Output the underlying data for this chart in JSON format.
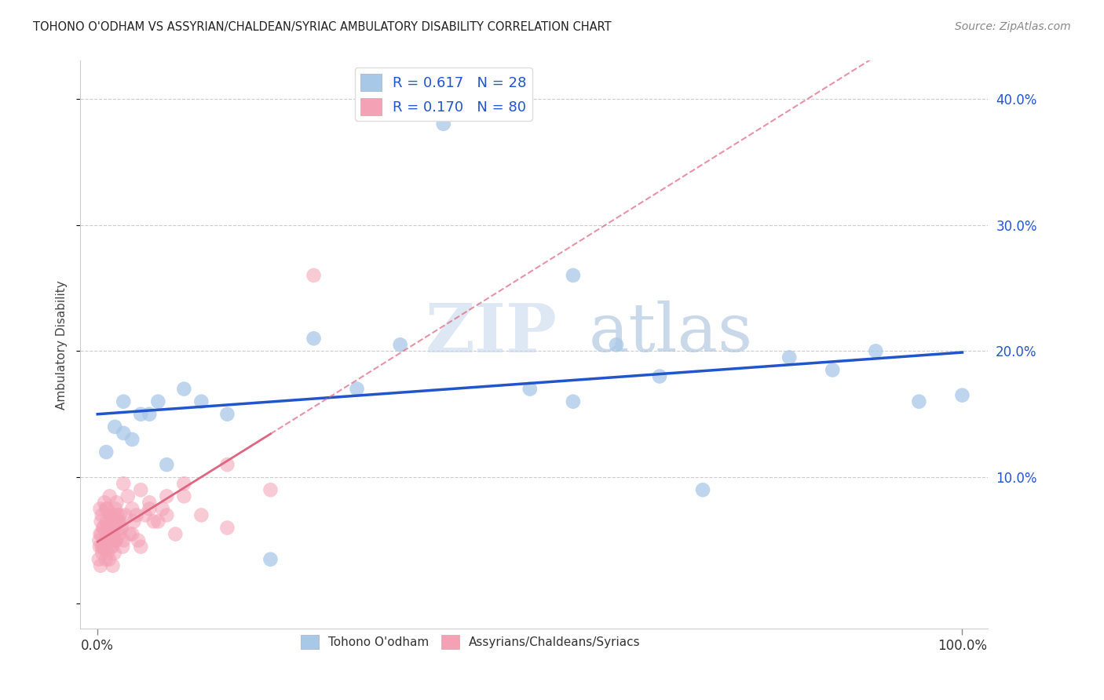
{
  "title": "TOHONO O'ODHAM VS ASSYRIAN/CHALDEAN/SYRIAC AMBULATORY DISABILITY CORRELATION CHART",
  "source": "Source: ZipAtlas.com",
  "ylabel": "Ambulatory Disability",
  "legend_label_blue": "Tohono O'odham",
  "legend_label_pink": "Assyrians/Chaldeans/Syriacs",
  "R_blue": 0.617,
  "N_blue": 28,
  "R_pink": 0.17,
  "N_pink": 80,
  "blue_color": "#A8C8E8",
  "pink_color": "#F4A0B5",
  "blue_line_color": "#2255CC",
  "pink_line_color": "#DD6680",
  "background_color": "#FFFFFF",
  "watermark_zip": "ZIP",
  "watermark_atlas": "atlas",
  "blue_x": [
    1,
    2,
    3,
    3,
    4,
    5,
    6,
    7,
    8,
    10,
    12,
    15,
    20,
    25,
    30,
    35,
    40,
    50,
    55,
    60,
    65,
    70,
    80,
    85,
    90,
    95,
    100,
    55
  ],
  "blue_y": [
    12,
    14,
    13.5,
    16,
    13,
    15,
    15,
    16,
    11,
    17,
    16,
    15,
    3.5,
    21,
    17,
    20.5,
    38,
    17,
    16,
    20.5,
    18,
    9,
    19.5,
    18.5,
    20,
    16,
    16.5,
    26
  ],
  "pink_x": [
    0.2,
    0.3,
    0.4,
    0.5,
    0.6,
    0.8,
    1.0,
    1.2,
    1.4,
    1.6,
    1.8,
    2.0,
    2.2,
    2.4,
    2.6,
    2.8,
    3.0,
    3.5,
    4.0,
    4.5,
    5.0,
    6.0,
    7.0,
    8.0,
    9.0,
    10.0,
    12.0,
    15.0,
    20.0,
    0.3,
    0.5,
    0.7,
    0.9,
    1.1,
    1.3,
    1.5,
    1.7,
    1.9,
    2.1,
    2.3,
    2.5,
    2.7,
    2.9,
    3.2,
    3.7,
    4.2,
    4.7,
    5.5,
    6.5,
    7.5,
    0.15,
    0.25,
    0.35,
    0.45,
    0.55,
    0.65,
    0.75,
    0.85,
    0.95,
    1.05,
    1.15,
    1.25,
    1.35,
    1.45,
    1.55,
    1.65,
    1.75,
    1.85,
    1.95,
    2.05,
    2.15,
    2.5,
    3.0,
    4.0,
    5.0,
    6.0,
    8.0,
    10.0,
    15.0,
    25.0
  ],
  "pink_y": [
    5.0,
    7.5,
    6.5,
    7.0,
    4.5,
    8.0,
    7.5,
    6.0,
    8.5,
    6.5,
    7.0,
    5.0,
    8.0,
    6.5,
    7.0,
    6.0,
    5.0,
    8.5,
    5.5,
    7.0,
    4.5,
    7.5,
    6.5,
    7.0,
    5.5,
    8.5,
    7.0,
    6.0,
    9.0,
    5.5,
    4.5,
    6.0,
    5.0,
    7.5,
    5.5,
    6.5,
    4.5,
    6.0,
    5.0,
    7.0,
    5.5,
    6.0,
    4.5,
    7.0,
    5.5,
    6.5,
    5.0,
    7.0,
    6.5,
    7.5,
    3.5,
    4.5,
    3.0,
    5.5,
    4.0,
    6.0,
    4.5,
    5.0,
    3.5,
    6.5,
    4.0,
    5.5,
    3.5,
    7.0,
    4.5,
    5.5,
    3.0,
    6.0,
    4.0,
    7.5,
    5.0,
    6.5,
    9.5,
    7.5,
    9.0,
    8.0,
    8.5,
    9.5,
    11.0,
    26.0
  ]
}
